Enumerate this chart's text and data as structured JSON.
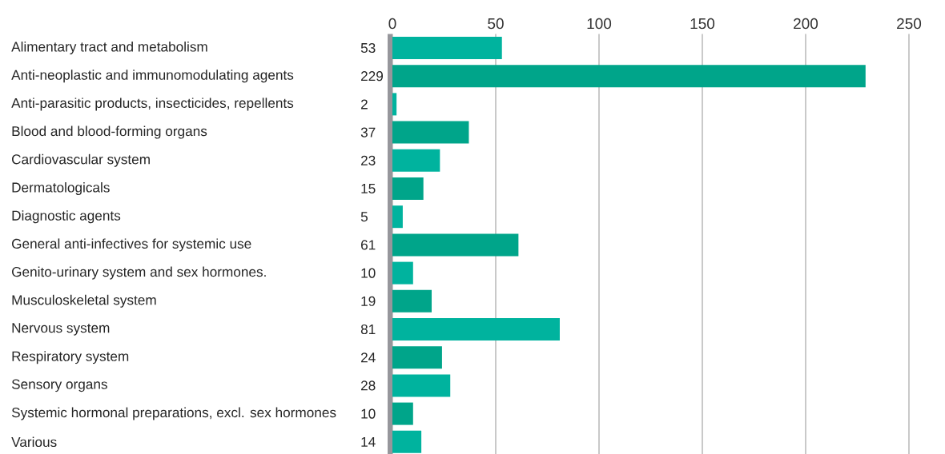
{
  "chart_data": {
    "type": "bar",
    "orientation": "horizontal",
    "categories": [
      "Alimentary tract and metabolism",
      "Anti-neoplastic and immunomodulating agents",
      "Anti-parasitic products, insecticides, repellents",
      "Blood and blood-forming organs",
      "Cardiovascular system",
      "Dermatologicals",
      "Diagnostic agents",
      "General anti-infectives for systemic use",
      "Genito-urinary system and sex hormones.",
      "Musculoskeletal system",
      "Nervous system",
      "Respiratory system",
      "Sensory organs",
      "Systemic hormonal preparations, excl. sex hormones",
      "Various"
    ],
    "values": [
      53,
      229,
      2,
      37,
      23,
      15,
      5,
      61,
      10,
      19,
      81,
      24,
      28,
      10,
      14
    ],
    "colors": [
      "#00b39e",
      "#00a58a",
      "#00b39e",
      "#00a58a",
      "#00b39e",
      "#00a58a",
      "#00b39e",
      "#00a58a",
      "#00b39e",
      "#00a58a",
      "#00b39e",
      "#00a58a",
      "#00b39e",
      "#00a58a",
      "#00b39e"
    ],
    "xlim": [
      0,
      250
    ],
    "xticks": [
      0,
      50,
      100,
      150,
      200,
      250
    ],
    "grid": "x",
    "data_labels": true
  }
}
